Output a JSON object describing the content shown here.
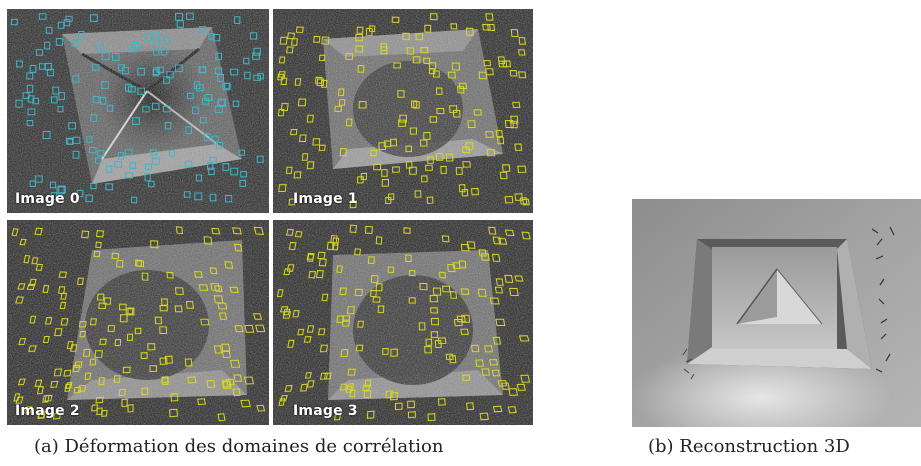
{
  "figure": {
    "subfigure_a": {
      "caption": "(a) Déformation des domaines de corrélation",
      "panels": [
        {
          "label": "Image 0",
          "box_color": "#3fb6c8"
        },
        {
          "label": "Image 1",
          "box_color": "#d8d820"
        },
        {
          "label": "Image 2",
          "box_color": "#d8d820"
        },
        {
          "label": "Image 3",
          "box_color": "#d8d820"
        }
      ]
    },
    "subfigure_b": {
      "caption": "(b) Reconstruction 3D"
    }
  }
}
